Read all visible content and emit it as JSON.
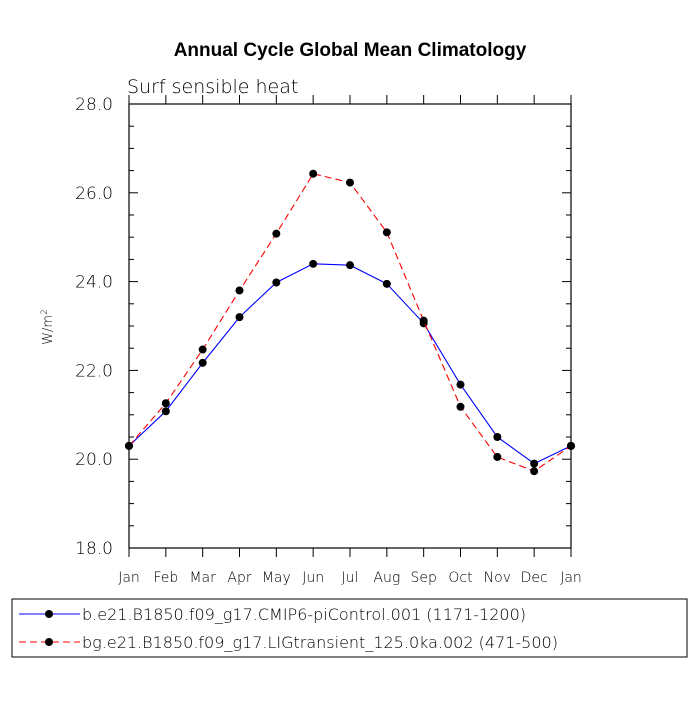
{
  "chart_data": {
    "type": "line",
    "title": "Annual Cycle Global Mean Climatology",
    "subtitle": "Surf sensible heat",
    "ylabel": "W/m",
    "ylabel_superscript": "2",
    "xlabel": "",
    "categories": [
      "Jan",
      "Feb",
      "Mar",
      "Apr",
      "May",
      "Jun",
      "Jul",
      "Aug",
      "Sep",
      "Oct",
      "Nov",
      "Dec",
      "Jan"
    ],
    "ylim": [
      18.0,
      28.0
    ],
    "yticks": [
      "18.0",
      "20.0",
      "22.0",
      "24.0",
      "26.0",
      "28.0"
    ],
    "grid": false,
    "legend_position": "bottom",
    "series": [
      {
        "name": "b.e21.B1850.f09_g17.CMIP6-piControl.001 (1171-1200)",
        "color": "#0000ff",
        "dash": "solid",
        "values": [
          20.3,
          21.08,
          22.17,
          23.2,
          23.98,
          24.4,
          24.37,
          23.95,
          23.06,
          21.68,
          20.5,
          19.9,
          20.3
        ]
      },
      {
        "name": "bg.e21.B1850.f09_g17.LIGtransient_125.0ka.002 (471-500)",
        "color": "#ff0000",
        "dash": "dashed",
        "values": [
          20.3,
          21.26,
          22.47,
          23.8,
          25.08,
          26.43,
          26.23,
          25.11,
          23.12,
          21.18,
          20.05,
          19.73,
          20.3
        ]
      }
    ]
  }
}
